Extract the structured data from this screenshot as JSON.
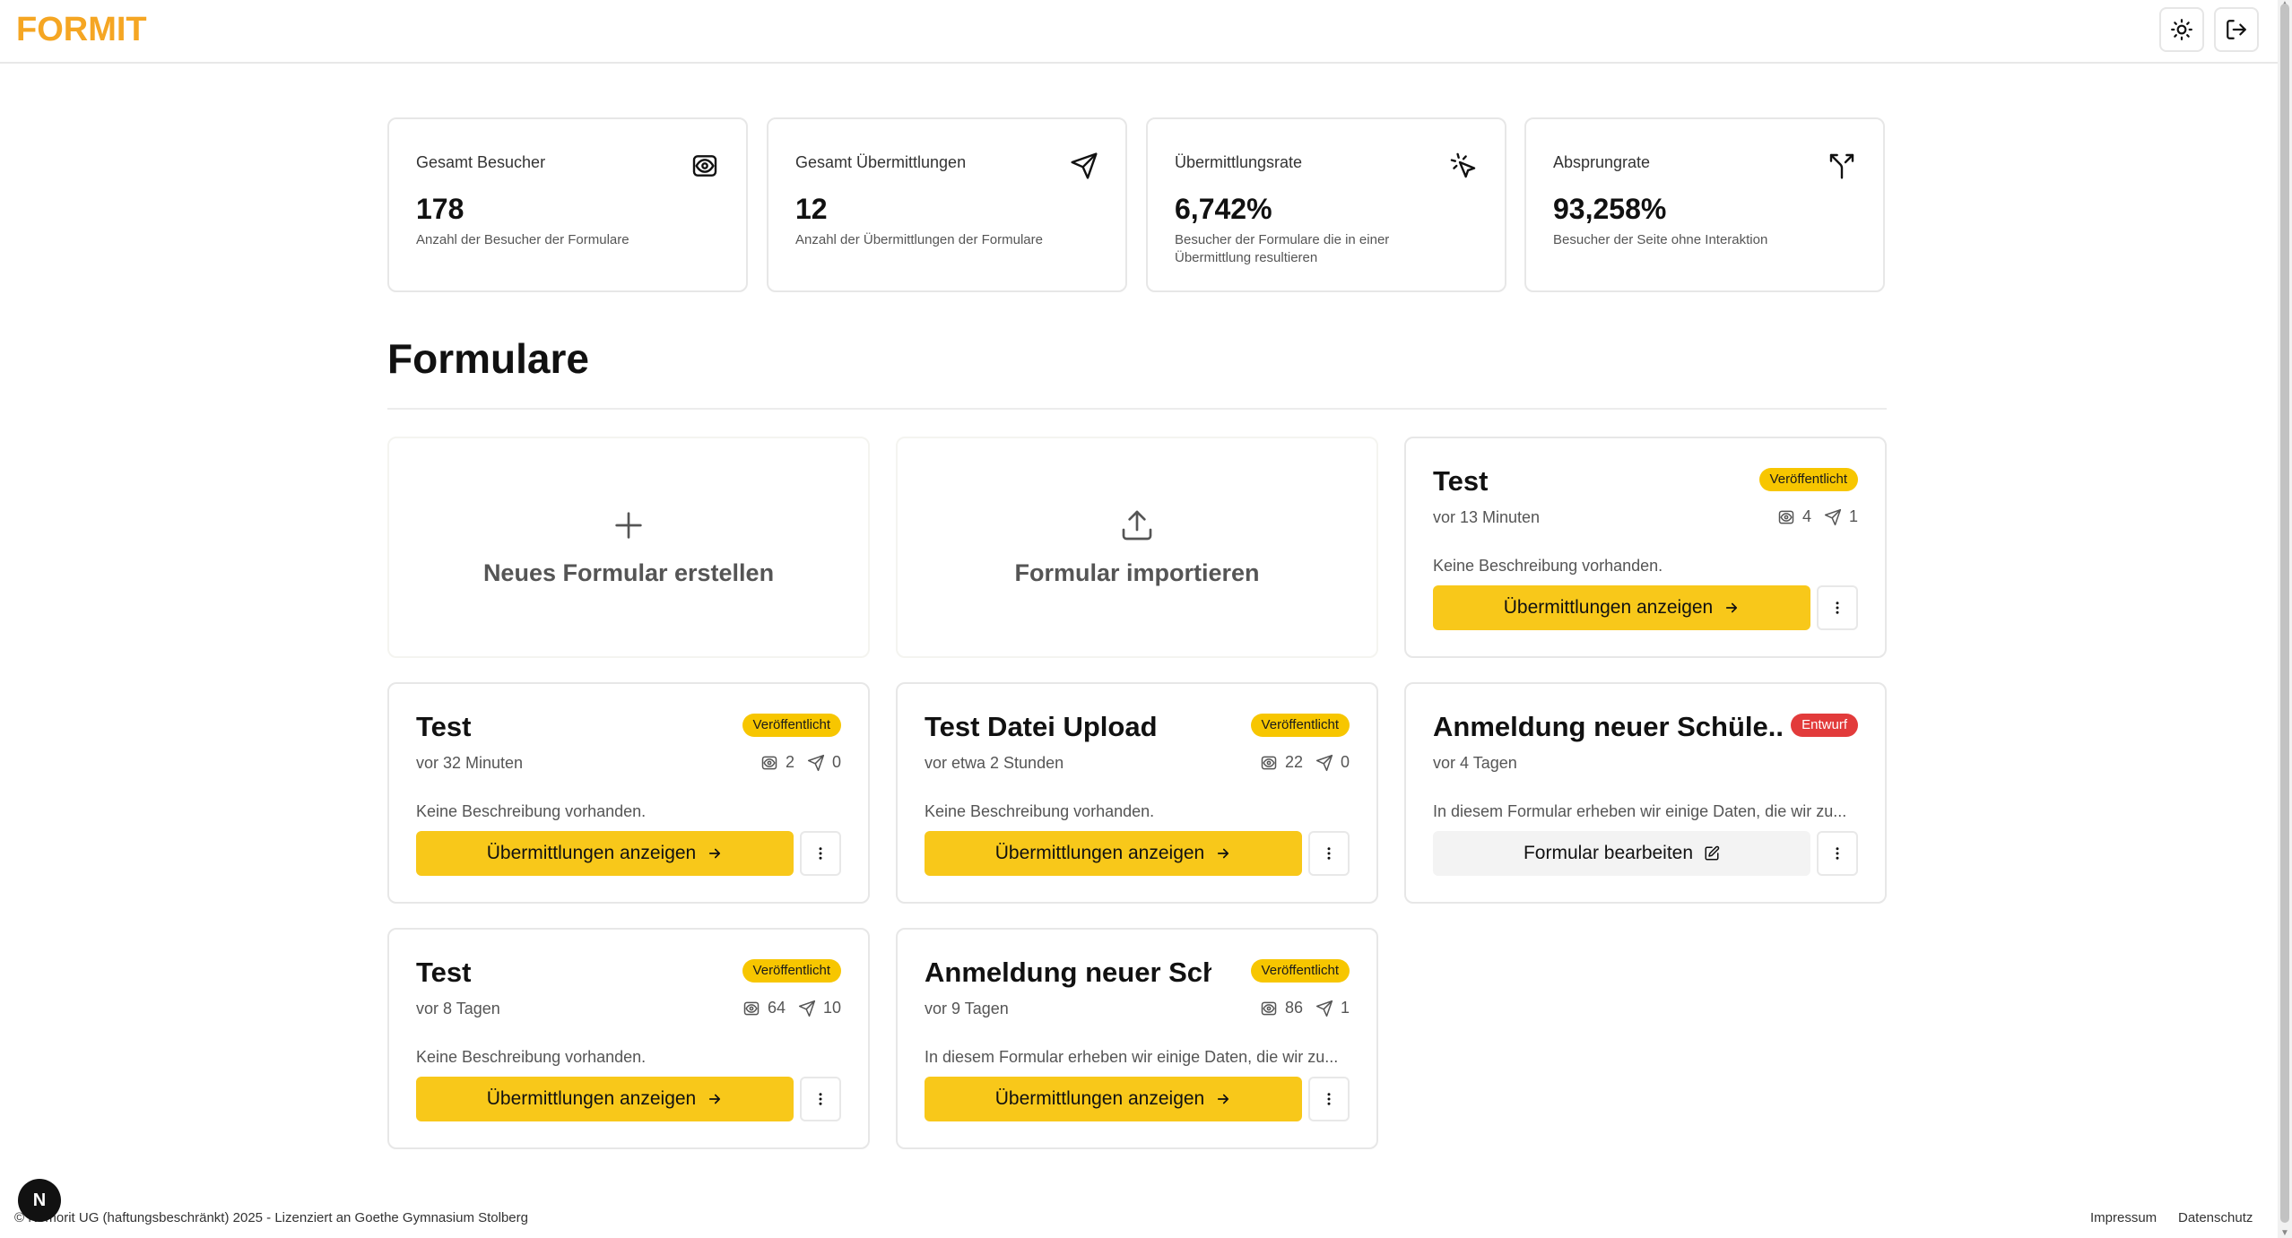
{
  "app": {
    "logo": "FORMIT"
  },
  "header": {
    "theme_icon": "sun-icon",
    "logout_icon": "logout-icon"
  },
  "stats": [
    {
      "label": "Gesamt Besucher",
      "value": "178",
      "description": "Anzahl der Besucher der Formulare",
      "icon": "eye-icon"
    },
    {
      "label": "Gesamt Übermittlungen",
      "value": "12",
      "description": "Anzahl der Übermittlungen der Formulare",
      "icon": "send-icon"
    },
    {
      "label": "Übermittlungsrate",
      "value": "6,742%",
      "description": "Besucher der Formulare die in einer Übermittlung resultieren",
      "icon": "cursor-click-icon"
    },
    {
      "label": "Absprungrate",
      "value": "93,258%",
      "description": "Besucher der Seite ohne Interaktion",
      "icon": "split-arrow-icon"
    }
  ],
  "section": {
    "title": "Formulare"
  },
  "actions": {
    "new_form": "Neues Formular erstellen",
    "import_form": "Formular importieren"
  },
  "forms": [
    {
      "title": "Test",
      "status": "Veröffentlicht",
      "time": "vor 13 Minuten",
      "visits": "4",
      "submissions": "1",
      "description": "Keine Beschreibung vorhanden.",
      "button": "Übermittlungen anzeigen"
    },
    {
      "title": "Test",
      "status": "Veröffentlicht",
      "time": "vor 32 Minuten",
      "visits": "2",
      "submissions": "0",
      "description": "Keine Beschreibung vorhanden.",
      "button": "Übermittlungen anzeigen"
    },
    {
      "title": "Test Datei Upload",
      "status": "Veröffentlicht",
      "time": "vor etwa 2 Stunden",
      "visits": "22",
      "submissions": "0",
      "description": "Keine Beschreibung vorhanden.",
      "button": "Übermittlungen anzeigen"
    },
    {
      "title": "Anmeldung neuer Schüle...",
      "status": "Entwurf",
      "time": "vor 4 Tagen",
      "description": "In diesem Formular erheben wir einige Daten, die wir zu...",
      "button": "Formular bearbeiten"
    },
    {
      "title": "Test",
      "status": "Veröffentlicht",
      "time": "vor 8 Tagen",
      "visits": "64",
      "submissions": "10",
      "description": "Keine Beschreibung vorhanden.",
      "button": "Übermittlungen anzeigen"
    },
    {
      "title": "Anmeldung neuer Sch...",
      "status": "Veröffentlicht",
      "time": "vor 9 Tagen",
      "visits": "86",
      "submissions": "1",
      "description": "In diesem Formular erheben wir einige Daten, die wir zu...",
      "button": "Übermittlungen anzeigen"
    }
  ],
  "footer": {
    "copyright": "© Nemorit UG (haftungsbeschränkt) 2025 - Lizenziert an Goethe Gymnasium Stolberg",
    "impressum": "Impressum",
    "datenschutz": "Datenschutz",
    "badge": "N"
  },
  "colors": {
    "accent": "#f8c81a",
    "logo": "#f5a623",
    "draft": "#e23b3b"
  }
}
